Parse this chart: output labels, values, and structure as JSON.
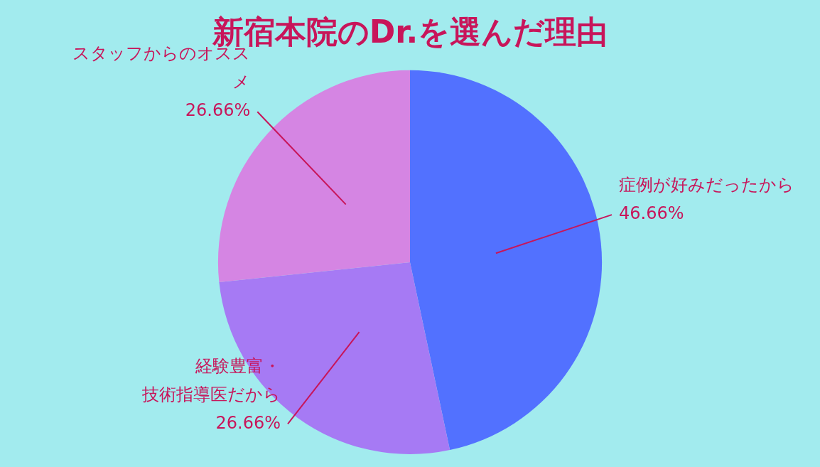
{
  "chart_data": {
    "type": "pie",
    "title": "新宿本院のDr.を選んだ理由",
    "categories": [
      "症例が好みだったから",
      "経験豊富・技術指導医だから",
      "スタッフからのオススメ"
    ],
    "values": [
      46.66,
      26.66,
      26.66
    ],
    "colors": [
      "#5271ff",
      "#a67af4",
      "#d585e3"
    ],
    "value_labels": [
      "46.66%",
      "26.66%",
      "26.66%"
    ],
    "legend": false
  }
}
